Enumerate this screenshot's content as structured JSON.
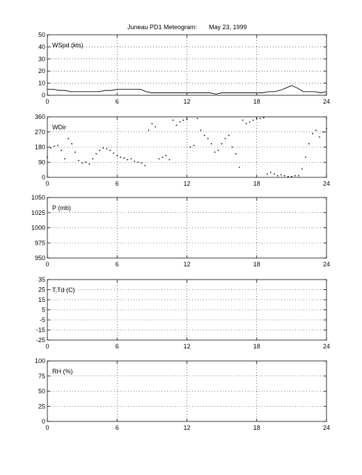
{
  "title": "Juneau PD1 Meteogram:",
  "date": "May 23, 1999",
  "colors": {
    "axis": "#000000",
    "grid": "#000000",
    "data": "#000000",
    "background": "#ffffff"
  },
  "chart_data": [
    {
      "type": "line",
      "label": "WSpd (kts)",
      "xlim": [
        0,
        24
      ],
      "ylim": [
        0,
        50
      ],
      "xticks": [
        0,
        6,
        12,
        18,
        24
      ],
      "yticks": [
        0,
        10,
        20,
        30,
        40,
        50
      ],
      "grid": true,
      "series": [
        {
          "x": [
            0,
            0.5,
            1,
            1.5,
            2,
            2.5,
            3,
            3.5,
            4,
            4.5,
            5,
            5.5,
            6,
            6.5,
            7,
            7.5,
            8,
            8.5,
            9,
            9.5,
            10,
            10.5,
            11,
            11.5,
            12,
            12.5,
            13,
            13.5,
            14,
            14.5,
            15,
            15.5,
            16,
            16.5,
            17,
            17.5,
            18,
            18.5,
            19,
            19.5,
            20,
            20.5,
            21,
            21.5,
            22,
            22.5,
            23,
            23.5,
            24
          ],
          "values": [
            5,
            5,
            4,
            4,
            3,
            3,
            3,
            3,
            3,
            3,
            4,
            4,
            5,
            5,
            5,
            5,
            5,
            3,
            2,
            2,
            2,
            2,
            2,
            2,
            2,
            2,
            2,
            2,
            2,
            1,
            2,
            2,
            2,
            2,
            2,
            2,
            2,
            2,
            3,
            3,
            4,
            6,
            8,
            6,
            3,
            3,
            3,
            2,
            3
          ]
        }
      ]
    },
    {
      "type": "scatter",
      "label": "WDir",
      "xlim": [
        0,
        24
      ],
      "ylim": [
        0,
        360
      ],
      "xticks": [
        0,
        6,
        12,
        18,
        24
      ],
      "yticks": [
        0,
        90,
        180,
        270,
        360
      ],
      "grid": true,
      "series": [
        {
          "x": [
            0,
            0.3,
            0.6,
            0.9,
            1.2,
            1.5,
            1.8,
            2.1,
            2.4,
            2.7,
            3,
            3.3,
            3.6,
            3.9,
            4.2,
            4.5,
            4.8,
            5.1,
            5.4,
            5.7,
            6,
            6.3,
            6.6,
            6.9,
            7.2,
            7.5,
            7.8,
            8.1,
            8.4,
            8.7,
            9,
            9.3,
            9.6,
            9.9,
            10.2,
            10.5,
            10.8,
            11.1,
            11.4,
            11.7,
            12,
            12.3,
            12.6,
            12.9,
            13.2,
            13.5,
            13.8,
            14.1,
            14.4,
            14.7,
            15,
            15.3,
            15.6,
            15.9,
            16.2,
            16.5,
            16.8,
            17.1,
            17.4,
            17.7,
            18,
            18.3,
            18.6,
            18.9,
            19.2,
            19.5,
            19.8,
            20.1,
            20.4,
            20.7,
            21,
            21.3,
            21.6,
            21.9,
            22.2,
            22.5,
            22.8,
            23.1,
            23.4,
            23.7,
            24
          ],
          "values": [
            120,
            175,
            185,
            190,
            160,
            110,
            230,
            200,
            150,
            100,
            85,
            90,
            80,
            110,
            140,
            160,
            175,
            170,
            160,
            145,
            130,
            120,
            115,
            105,
            110,
            95,
            90,
            85,
            70,
            280,
            320,
            300,
            110,
            120,
            130,
            105,
            340,
            310,
            330,
            340,
            345,
            180,
            190,
            350,
            280,
            250,
            230,
            200,
            150,
            160,
            200,
            230,
            250,
            180,
            140,
            60,
            340,
            320,
            330,
            340,
            350,
            350,
            355,
            20,
            30,
            20,
            10,
            15,
            10,
            5,
            5,
            10,
            10,
            50,
            120,
            200,
            260,
            280,
            240,
            270,
            290
          ]
        }
      ]
    },
    {
      "type": "line",
      "label": "P (mb)",
      "xlim": [
        0,
        24
      ],
      "ylim": [
        950,
        1050
      ],
      "xticks": [
        0,
        6,
        12,
        18,
        24
      ],
      "yticks": [
        950,
        975,
        1000,
        1025,
        1050
      ],
      "grid": true,
      "series": []
    },
    {
      "type": "line",
      "label": "T,Td (C)",
      "xlim": [
        0,
        24
      ],
      "ylim": [
        -25,
        35
      ],
      "xticks": [
        0,
        6,
        12,
        18,
        24
      ],
      "yticks": [
        -25,
        -15,
        -5,
        5,
        15,
        25,
        35
      ],
      "grid": true,
      "series": []
    },
    {
      "type": "line",
      "label": "RH (%)",
      "xlim": [
        0,
        24
      ],
      "ylim": [
        0,
        100
      ],
      "xticks": [
        0,
        6,
        12,
        18,
        24
      ],
      "yticks": [
        0,
        25,
        50,
        75,
        100
      ],
      "grid": true,
      "series": []
    }
  ]
}
